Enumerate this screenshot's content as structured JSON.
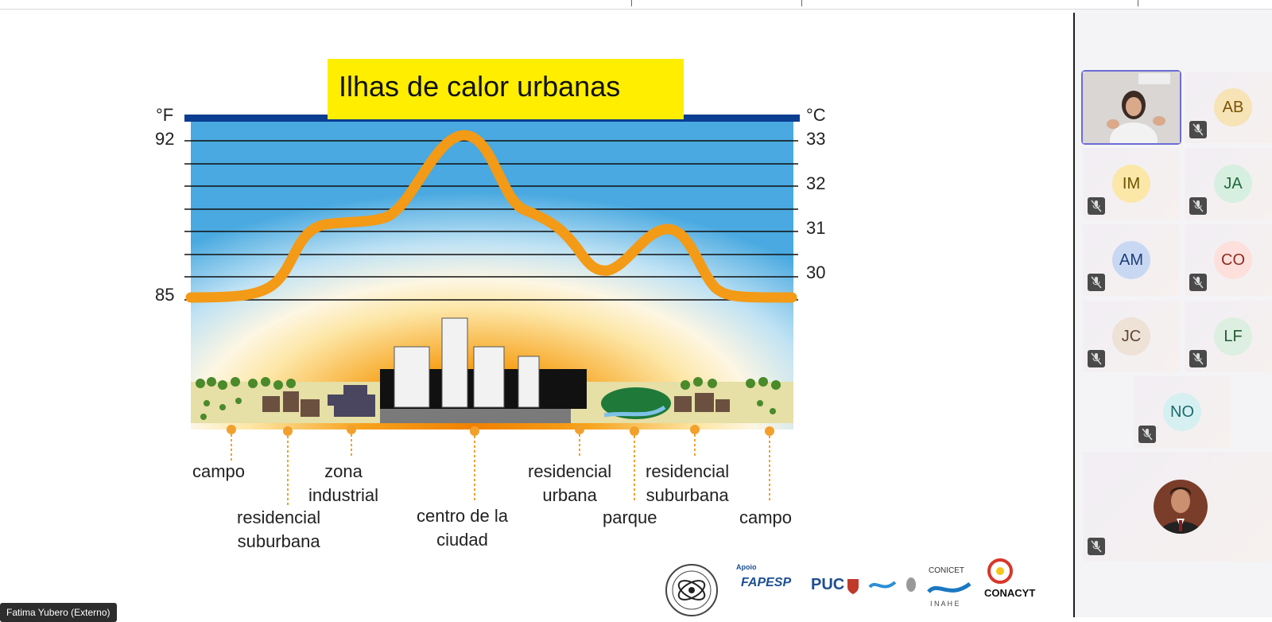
{
  "slide": {
    "title": "Ilhas de calor urbanas",
    "unit_f": "°F",
    "unit_c": "°C",
    "ticks_f": [
      "92",
      "85"
    ],
    "ticks_c": [
      "33",
      "32",
      "31",
      "30"
    ],
    "categories": [
      {
        "line1": "campo",
        "line2": ""
      },
      {
        "line1": "residencial",
        "line2": "suburbana"
      },
      {
        "line1": "zona",
        "line2": "industrial"
      },
      {
        "line1": "centro de la",
        "line2": "ciudad"
      },
      {
        "line1": "residencial",
        "line2": "urbana"
      },
      {
        "line1": "parque",
        "line2": ""
      },
      {
        "line1": "residencial",
        "line2": "suburbana"
      },
      {
        "line1": "campo",
        "line2": ""
      }
    ],
    "logos": {
      "apoio": "Apoio",
      "fapesp": "FAPESP",
      "puc": "PUC",
      "conicet": "CONICET",
      "inahe": "I N A H E",
      "conacyt": "CONACYT"
    }
  },
  "speaker_name": "Fatima Yubero (Externo)",
  "participants": [
    {
      "initials": "",
      "kind": "video",
      "muted": false,
      "active": true
    },
    {
      "initials": "AB",
      "bg": "#f6e3b6",
      "fg": "#7a5300",
      "muted": true
    },
    {
      "initials": "IM",
      "bg": "#fbe7a8",
      "fg": "#6b5200",
      "muted": true
    },
    {
      "initials": "JA",
      "bg": "#d7efe0",
      "fg": "#1c6b3c",
      "muted": true
    },
    {
      "initials": "AM",
      "bg": "#c9d8f2",
      "fg": "#1b3e7a",
      "muted": true
    },
    {
      "initials": "CO",
      "bg": "#fde0dc",
      "fg": "#8a2e22",
      "muted": true
    },
    {
      "initials": "JC",
      "bg": "#eee1d6",
      "fg": "#5d4636",
      "muted": true
    },
    {
      "initials": "LF",
      "bg": "#dcefe1",
      "fg": "#235b35",
      "muted": true
    },
    {
      "initials": "NO",
      "bg": "#d6f0f1",
      "fg": "#1c6a6e",
      "muted": true
    },
    {
      "initials": "",
      "kind": "photo",
      "muted": true
    }
  ]
}
